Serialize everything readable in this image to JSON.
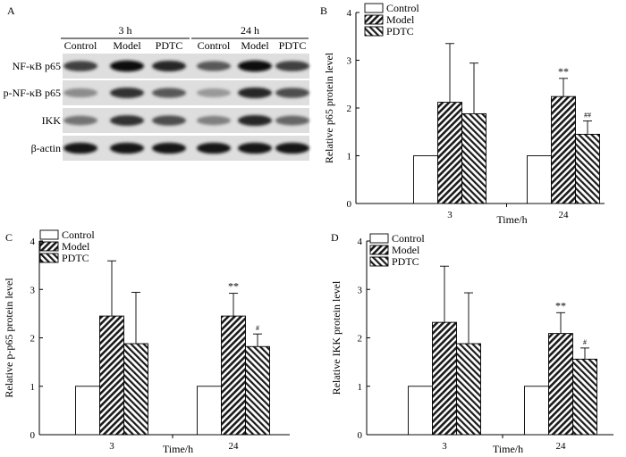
{
  "blot": {
    "panel": "A",
    "time_groups": [
      "3 h",
      "24 h"
    ],
    "lanes": [
      "Control",
      "Model",
      "PDTC",
      "Control",
      "Model",
      "PDTC"
    ],
    "proteins": [
      "NF-κB p65",
      "p-NF-κB p65",
      "IKK",
      "β-actin"
    ],
    "band_intensity": [
      [
        0.75,
        0.95,
        0.85,
        0.65,
        0.95,
        0.75
      ],
      [
        0.45,
        0.8,
        0.65,
        0.4,
        0.85,
        0.7
      ],
      [
        0.55,
        0.8,
        0.7,
        0.5,
        0.85,
        0.6
      ],
      [
        0.9,
        0.9,
        0.9,
        0.9,
        0.9,
        0.9
      ]
    ]
  },
  "chart_data": [
    {
      "panel": "B",
      "type": "bar",
      "categories": [
        "3",
        "24"
      ],
      "series": [
        {
          "name": "Control",
          "values": [
            1.0,
            1.0
          ],
          "errors": [
            0,
            0
          ]
        },
        {
          "name": "Model",
          "values": [
            2.12,
            2.24
          ],
          "errors": [
            1.23,
            0.38
          ]
        },
        {
          "name": "PDTC",
          "values": [
            1.88,
            1.45
          ],
          "errors": [
            1.06,
            0.28
          ]
        }
      ],
      "annotations": [
        {
          "category": "24",
          "series": "Model",
          "text": "**"
        },
        {
          "category": "24",
          "series": "PDTC",
          "text": "##"
        }
      ],
      "xlabel": "Time/h",
      "ylabel": "Relative p65 protein level",
      "ylim": [
        0,
        4
      ],
      "yticks": [
        "0",
        "1",
        "2",
        "3",
        "4"
      ],
      "legend": "top-left"
    },
    {
      "panel": "C",
      "type": "bar",
      "categories": [
        "3",
        "24"
      ],
      "series": [
        {
          "name": "Control",
          "values": [
            1.0,
            1.0
          ],
          "errors": [
            0,
            0
          ]
        },
        {
          "name": "Model",
          "values": [
            2.45,
            2.45
          ],
          "errors": [
            1.14,
            0.47
          ]
        },
        {
          "name": "PDTC",
          "values": [
            1.88,
            1.82
          ],
          "errors": [
            1.06,
            0.26
          ]
        }
      ],
      "annotations": [
        {
          "category": "24",
          "series": "Model",
          "text": "**"
        },
        {
          "category": "24",
          "series": "PDTC",
          "text": "#"
        }
      ],
      "xlabel": "Time/h",
      "ylabel": "Relative p-p65 protein level",
      "ylim": [
        0,
        4
      ],
      "yticks": [
        "0",
        "1",
        "2",
        "3",
        "4"
      ],
      "legend": "top-left"
    },
    {
      "panel": "D",
      "type": "bar",
      "categories": [
        "3",
        "24"
      ],
      "series": [
        {
          "name": "Control",
          "values": [
            1.0,
            1.0
          ],
          "errors": [
            0,
            0
          ]
        },
        {
          "name": "Model",
          "values": [
            2.32,
            2.09
          ],
          "errors": [
            1.16,
            0.43
          ]
        },
        {
          "name": "PDTC",
          "values": [
            1.88,
            1.56
          ],
          "errors": [
            1.05,
            0.23
          ]
        }
      ],
      "annotations": [
        {
          "category": "24",
          "series": "Model",
          "text": "**"
        },
        {
          "category": "24",
          "series": "PDTC",
          "text": "#"
        }
      ],
      "xlabel": "Time/h",
      "ylabel": "Relative IKK protein level",
      "ylim": [
        0,
        4
      ],
      "yticks": [
        "0",
        "1",
        "2",
        "3",
        "4"
      ],
      "legend": "top-left"
    }
  ]
}
